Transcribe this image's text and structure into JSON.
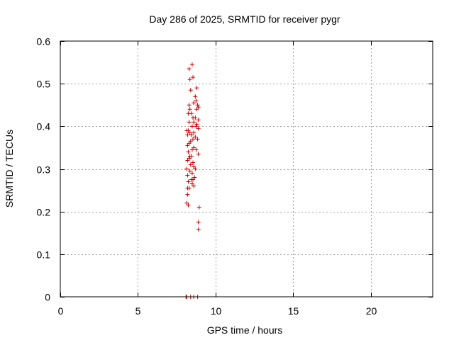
{
  "chart_data": {
    "type": "scatter",
    "title": "Day 286 of 2025, SRMTID for receiver pygr",
    "xlabel": "GPS time / hours",
    "ylabel": "SRMTID / TECUs",
    "xlim": [
      0,
      24
    ],
    "ylim": [
      0,
      0.6
    ],
    "x_ticks": [
      0,
      5,
      10,
      15,
      20
    ],
    "x_tick_labels": [
      "0",
      "5",
      "10",
      "15",
      "20"
    ],
    "y_ticks": [
      0,
      0.1,
      0.2,
      0.3,
      0.4,
      0.5,
      0.6
    ],
    "y_tick_labels": [
      "0",
      "0.1",
      "0.2",
      "0.3",
      "0.4",
      "0.5",
      "0.6"
    ],
    "grid": true,
    "marker": "+",
    "series": [
      {
        "name": "SRMTID",
        "color": "#cc0000",
        "points": [
          [
            8.1,
            0.0
          ],
          [
            8.15,
            0.0
          ],
          [
            8.4,
            0.0
          ],
          [
            8.6,
            0.0
          ],
          [
            8.85,
            0.0
          ],
          [
            8.5,
            0.545
          ],
          [
            8.3,
            0.535
          ],
          [
            8.55,
            0.515
          ],
          [
            8.35,
            0.51
          ],
          [
            8.8,
            0.49
          ],
          [
            8.4,
            0.485
          ],
          [
            8.7,
            0.47
          ],
          [
            8.75,
            0.46
          ],
          [
            8.6,
            0.455
          ],
          [
            8.3,
            0.45
          ],
          [
            8.85,
            0.45
          ],
          [
            8.9,
            0.445
          ],
          [
            8.35,
            0.44
          ],
          [
            8.8,
            0.44
          ],
          [
            8.45,
            0.43
          ],
          [
            8.25,
            0.43
          ],
          [
            8.7,
            0.42
          ],
          [
            8.55,
            0.42
          ],
          [
            8.9,
            0.415
          ],
          [
            8.6,
            0.41
          ],
          [
            8.3,
            0.41
          ],
          [
            8.8,
            0.405
          ],
          [
            8.5,
            0.4
          ],
          [
            8.75,
            0.4
          ],
          [
            8.9,
            0.395
          ],
          [
            8.15,
            0.39
          ],
          [
            8.25,
            0.39
          ],
          [
            8.35,
            0.385
          ],
          [
            8.6,
            0.385
          ],
          [
            8.2,
            0.38
          ],
          [
            8.45,
            0.38
          ],
          [
            8.7,
            0.375
          ],
          [
            8.55,
            0.37
          ],
          [
            8.85,
            0.37
          ],
          [
            8.4,
            0.365
          ],
          [
            8.3,
            0.36
          ],
          [
            8.2,
            0.355
          ],
          [
            8.6,
            0.35
          ],
          [
            8.5,
            0.345
          ],
          [
            8.75,
            0.345
          ],
          [
            8.25,
            0.34
          ],
          [
            8.9,
            0.335
          ],
          [
            8.45,
            0.33
          ],
          [
            8.35,
            0.33
          ],
          [
            8.3,
            0.325
          ],
          [
            8.2,
            0.32
          ],
          [
            8.55,
            0.315
          ],
          [
            8.4,
            0.31
          ],
          [
            8.6,
            0.305
          ],
          [
            8.15,
            0.3
          ],
          [
            8.7,
            0.3
          ],
          [
            8.35,
            0.295
          ],
          [
            8.5,
            0.29
          ],
          [
            8.2,
            0.285
          ],
          [
            8.65,
            0.28
          ],
          [
            8.45,
            0.275
          ],
          [
            8.55,
            0.275
          ],
          [
            8.25,
            0.27
          ],
          [
            8.5,
            0.265
          ],
          [
            8.6,
            0.26
          ],
          [
            8.2,
            0.255
          ],
          [
            8.3,
            0.255
          ],
          [
            8.2,
            0.24
          ],
          [
            8.15,
            0.22
          ],
          [
            8.25,
            0.215
          ],
          [
            8.95,
            0.21
          ],
          [
            8.9,
            0.175
          ],
          [
            8.9,
            0.158
          ]
        ]
      }
    ]
  }
}
